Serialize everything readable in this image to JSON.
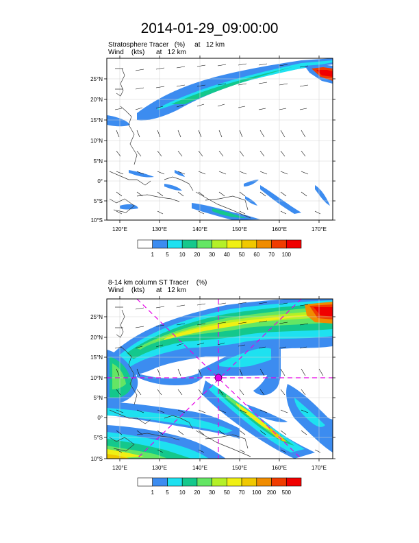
{
  "page": {
    "title": "2014-01-29_09:00:00"
  },
  "panels": [
    {
      "subtitle_line1": "Stratosphere Tracer   (%)     at   12 km",
      "subtitle_line2": "Wind    (kts)      at   12 km",
      "lat_labels": [
        "25°N",
        "20°N",
        "15°N",
        "10°N",
        "5°N",
        "0°",
        "5°S",
        "10°S"
      ],
      "lon_labels": [
        "120°E",
        "130°E",
        "140°E",
        "150°E",
        "160°E",
        "170°E"
      ],
      "colorbar": {
        "labels": [
          "1",
          "5",
          "10",
          "20",
          "30",
          "40",
          "50",
          "60",
          "70",
          "100"
        ],
        "colors": [
          "#ffffff",
          "#3c8cf0",
          "#1ee1f0",
          "#14c88c",
          "#64e664",
          "#b4f028",
          "#f0f014",
          "#f0c800",
          "#f08c00",
          "#f03c00",
          "#f00000"
        ]
      }
    },
    {
      "subtitle_line1": "8-14 km column ST Tracer    (%)",
      "subtitle_line2": "Wind    (kts)      at   12 km",
      "lat_labels": [
        "25°N",
        "20°N",
        "15°N",
        "10°N",
        "5°N",
        "0°",
        "5°S",
        "10°S"
      ],
      "lon_labels": [
        "120°E",
        "130°E",
        "140°E",
        "150°E",
        "160°E",
        "170°E"
      ],
      "colorbar": {
        "labels": [
          "1",
          "5",
          "10",
          "20",
          "30",
          "50",
          "70",
          "100",
          "200",
          "500"
        ],
        "colors": [
          "#ffffff",
          "#3c8cf0",
          "#1ee1f0",
          "#14c88c",
          "#64e664",
          "#b4f028",
          "#f0f014",
          "#f0c800",
          "#f08c00",
          "#f03c00",
          "#f00000"
        ]
      }
    }
  ]
}
